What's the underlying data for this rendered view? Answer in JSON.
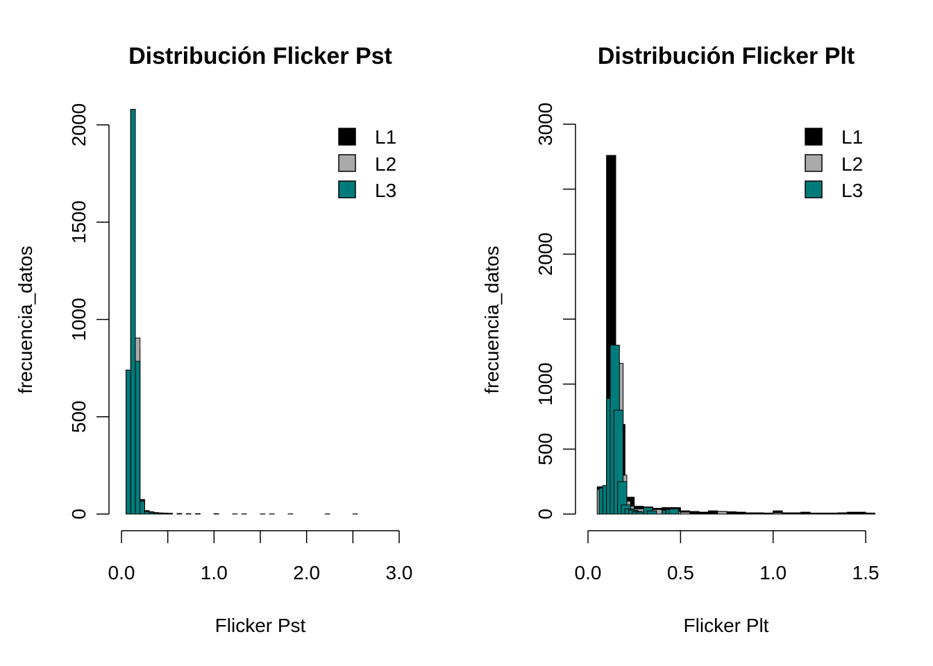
{
  "chart_data": [
    {
      "type": "bar",
      "title": "Distribución Flicker Pst",
      "xlabel": "Flicker Pst",
      "ylabel": "frecuencia_datos",
      "xlim": [
        0,
        3.125
      ],
      "ylim": [
        0,
        2080
      ],
      "bin_width": 0.05,
      "x_ticks": [
        0.0,
        0.5,
        1.0,
        1.5,
        2.0,
        2.5,
        3.0
      ],
      "x_tick_labels": [
        "0.0",
        "",
        "1.0",
        "",
        "2.0",
        "",
        "3.0"
      ],
      "y_ticks": [
        0,
        500,
        1000,
        1500,
        2000
      ],
      "y_tick_labels": [
        "0",
        "500",
        "1000",
        "1500",
        "2000"
      ],
      "legend": {
        "position": "top-right",
        "items": [
          "L1",
          "L2",
          "L3"
        ]
      },
      "series": [
        {
          "name": "L1",
          "color": "#000000",
          "bins": [
            [
              0.05,
              740
            ],
            [
              0.1,
              2080
            ],
            [
              0.15,
              850
            ],
            [
              0.2,
              75
            ],
            [
              0.25,
              18
            ],
            [
              0.3,
              12
            ],
            [
              0.35,
              8
            ],
            [
              0.4,
              6
            ],
            [
              0.45,
              5
            ],
            [
              0.5,
              4
            ],
            [
              0.6,
              3
            ],
            [
              0.7,
              2
            ],
            [
              0.8,
              2
            ],
            [
              1.0,
              2
            ],
            [
              1.2,
              1
            ],
            [
              1.5,
              1
            ],
            [
              2.2,
              1
            ]
          ]
        },
        {
          "name": "L2",
          "color": "#aaaaaa",
          "bins": [
            [
              0.05,
              740
            ],
            [
              0.1,
              2080
            ],
            [
              0.15,
              905
            ],
            [
              0.2,
              70
            ],
            [
              0.25,
              15
            ],
            [
              0.3,
              10
            ],
            [
              0.35,
              6
            ],
            [
              0.4,
              5
            ],
            [
              0.5,
              3
            ],
            [
              0.6,
              2
            ],
            [
              0.8,
              2
            ],
            [
              1.0,
              1
            ],
            [
              1.3,
              1
            ],
            [
              1.8,
              1
            ]
          ]
        },
        {
          "name": "L3",
          "color": "#007b7b",
          "bins": [
            [
              0.05,
              740
            ],
            [
              0.1,
              2080
            ],
            [
              0.15,
              785
            ],
            [
              0.2,
              65
            ],
            [
              0.25,
              12
            ],
            [
              0.3,
              8
            ],
            [
              0.35,
              5
            ],
            [
              0.4,
              4
            ],
            [
              0.5,
              2
            ],
            [
              0.7,
              1
            ],
            [
              1.0,
              1
            ],
            [
              1.6,
              1
            ],
            [
              2.5,
              1
            ]
          ]
        }
      ]
    },
    {
      "type": "bar",
      "title": "Distribución Flicker Plt",
      "xlabel": "Flicker Plt",
      "ylabel": "frecuencia_datos",
      "xlim": [
        0,
        1.563
      ],
      "ylim": [
        0,
        3000
      ],
      "bin_width": 0.05,
      "x_ticks": [
        0.0,
        0.5,
        1.0,
        1.5
      ],
      "x_tick_labels": [
        "0.0",
        "0.5",
        "1.0",
        "1.5"
      ],
      "y_ticks": [
        0,
        500,
        1000,
        1500,
        2000,
        2500,
        3000
      ],
      "y_tick_labels": [
        "0",
        "500",
        "1000",
        "",
        "2000",
        "",
        "3000"
      ],
      "legend": {
        "position": "top-right",
        "items": [
          "L1",
          "L2",
          "L3"
        ]
      },
      "series": [
        {
          "name": "L1",
          "color": "#000000",
          "bins": [
            [
              0.05,
              210
            ],
            [
              0.1,
              2760
            ],
            [
              0.15,
              690
            ],
            [
              0.2,
              130
            ],
            [
              0.25,
              60
            ],
            [
              0.3,
              30
            ],
            [
              0.35,
              45
            ],
            [
              0.4,
              50
            ],
            [
              0.45,
              50
            ],
            [
              0.5,
              25
            ],
            [
              0.55,
              20
            ],
            [
              0.6,
              15
            ],
            [
              0.65,
              25
            ],
            [
              0.7,
              20
            ],
            [
              0.75,
              18
            ],
            [
              0.8,
              15
            ],
            [
              0.85,
              10
            ],
            [
              0.9,
              10
            ],
            [
              0.95,
              8
            ],
            [
              1.0,
              25
            ],
            [
              1.05,
              10
            ],
            [
              1.1,
              10
            ],
            [
              1.15,
              15
            ],
            [
              1.2,
              8
            ],
            [
              1.25,
              8
            ],
            [
              1.3,
              8
            ],
            [
              1.35,
              10
            ],
            [
              1.4,
              15
            ],
            [
              1.45,
              15
            ],
            [
              1.5,
              8
            ]
          ]
        },
        {
          "name": "L2",
          "color": "#aaaaaa",
          "bins": [
            [
              0.05,
              190
            ],
            [
              0.07,
              200
            ],
            [
              0.1,
              880
            ],
            [
              0.12,
              1150
            ],
            [
              0.14,
              1160
            ],
            [
              0.16,
              300
            ],
            [
              0.18,
              100
            ],
            [
              0.2,
              60
            ],
            [
              0.25,
              40
            ],
            [
              0.3,
              55
            ],
            [
              0.35,
              35
            ],
            [
              0.4,
              30
            ],
            [
              0.45,
              20
            ],
            [
              0.5,
              15
            ],
            [
              0.7,
              20
            ],
            [
              1.0,
              10
            ]
          ]
        },
        {
          "name": "L3",
          "color": "#007b7b",
          "bins": [
            [
              0.06,
              200
            ],
            [
              0.08,
              220
            ],
            [
              0.1,
              890
            ],
            [
              0.12,
              1300
            ],
            [
              0.14,
              800
            ],
            [
              0.16,
              250
            ],
            [
              0.18,
              70
            ],
            [
              0.2,
              40
            ],
            [
              0.22,
              30
            ],
            [
              0.24,
              20
            ],
            [
              0.26,
              15
            ],
            [
              0.3,
              50
            ],
            [
              0.32,
              25
            ],
            [
              0.4,
              30
            ],
            [
              0.42,
              35
            ],
            [
              0.44,
              40
            ]
          ]
        }
      ]
    }
  ]
}
